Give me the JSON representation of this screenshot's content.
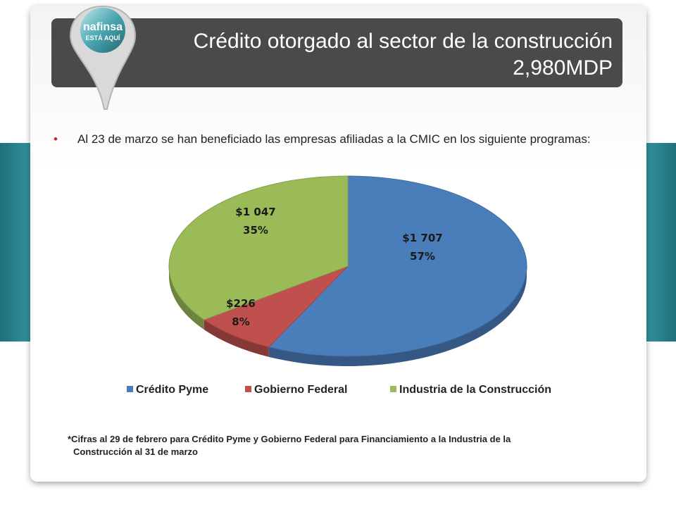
{
  "header": {
    "title_line1": "Crédito otorgado al sector de la construcción",
    "title_line2": "2,980MDP"
  },
  "logo": {
    "brand": "nafinsa",
    "tagline": "ESTÁ AQUÍ"
  },
  "bullet": {
    "text": "Al 23 de marzo se han beneficiado las empresas afiliadas a la CMIC en  los siguiente programas:"
  },
  "chart_data": {
    "type": "pie",
    "categories": [
      "Crédito Pyme",
      "Gobierno Federal",
      "Industria de la Construcción"
    ],
    "values": [
      1707,
      226,
      1047
    ],
    "value_labels": [
      "$1 707",
      "$226",
      "$1 047"
    ],
    "percent_labels": [
      "57%",
      "8%",
      "35%"
    ],
    "colors": [
      "#4a7ebb",
      "#c0504d",
      "#9bbb59"
    ],
    "legend_position": "bottom"
  },
  "footnote": {
    "line1": "*Cifras al 29 de febrero para Crédito Pyme y Gobierno Federal para Financiamiento a la Industria de la",
    "line2": "Construcción al 31 de marzo"
  }
}
